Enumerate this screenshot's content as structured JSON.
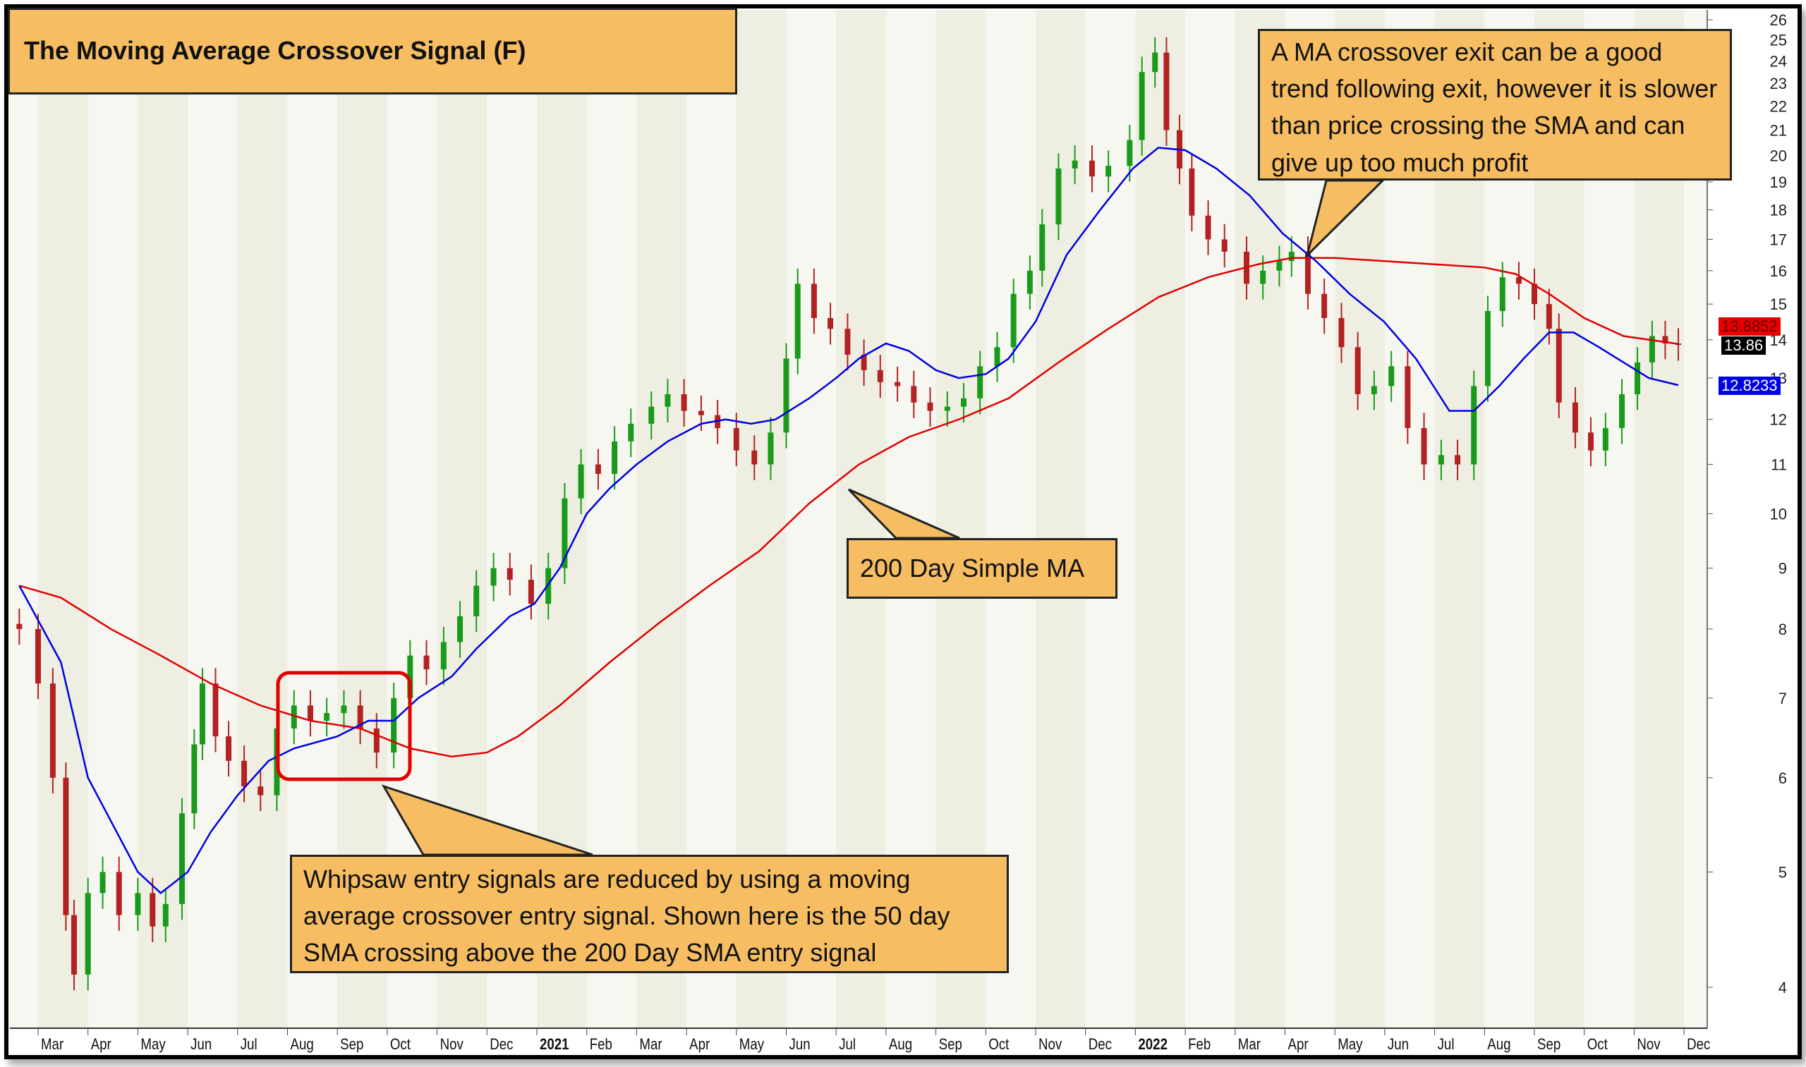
{
  "chart_data": {
    "type": "candlestick",
    "title": "The Moving Average Crossover Signal (F)",
    "xlabel": "",
    "ylabel": "",
    "y_scale": "log",
    "ylim": [
      3.8,
      26.5
    ],
    "y_ticks": [
      4,
      5,
      6,
      7,
      8,
      9,
      10,
      11,
      12,
      13,
      14,
      15,
      16,
      17,
      18,
      19,
      20,
      21,
      22,
      23,
      24,
      25,
      26
    ],
    "x_ticks": [
      "Mar",
      "Apr",
      "May",
      "Jun",
      "Jul",
      "Aug",
      "Sep",
      "Oct",
      "Nov",
      "Dec",
      "2021",
      "Feb",
      "Mar",
      "Apr",
      "May",
      "Jun",
      "Jul",
      "Aug",
      "Sep",
      "Oct",
      "Nov",
      "Dec",
      "2022",
      "Feb",
      "Mar",
      "Apr",
      "May",
      "Jun",
      "Jul",
      "Aug",
      "Sep",
      "Oct",
      "Nov",
      "Dec"
    ],
    "grid": "alternating month bands",
    "colors": {
      "up": "#1a9a1a",
      "down": "#b22222",
      "sma50": "#0000e0",
      "sma200": "#e00000",
      "band": "#eeefe2"
    },
    "price": [
      [
        "2020-02-20",
        8.0
      ],
      [
        "2020-03-01",
        7.2
      ],
      [
        "2020-03-10",
        6.0
      ],
      [
        "2020-03-18",
        4.6
      ],
      [
        "2020-03-23",
        4.1
      ],
      [
        "2020-04-01",
        4.8
      ],
      [
        "2020-04-10",
        5.0
      ],
      [
        "2020-04-20",
        4.6
      ],
      [
        "2020-05-01",
        4.8
      ],
      [
        "2020-05-10",
        4.5
      ],
      [
        "2020-05-18",
        4.7
      ],
      [
        "2020-05-28",
        5.6
      ],
      [
        "2020-06-05",
        6.4
      ],
      [
        "2020-06-10",
        7.2
      ],
      [
        "2020-06-18",
        6.5
      ],
      [
        "2020-06-26",
        6.2
      ],
      [
        "2020-07-05",
        5.9
      ],
      [
        "2020-07-15",
        5.8
      ],
      [
        "2020-07-25",
        6.6
      ],
      [
        "2020-08-05",
        6.9
      ],
      [
        "2020-08-15",
        6.7
      ],
      [
        "2020-08-25",
        6.8
      ],
      [
        "2020-09-05",
        6.9
      ],
      [
        "2020-09-15",
        6.6
      ],
      [
        "2020-09-25",
        6.3
      ],
      [
        "2020-10-05",
        7.0
      ],
      [
        "2020-10-15",
        7.6
      ],
      [
        "2020-10-25",
        7.4
      ],
      [
        "2020-11-05",
        7.8
      ],
      [
        "2020-11-15",
        8.2
      ],
      [
        "2020-11-25",
        8.7
      ],
      [
        "2020-12-05",
        9.0
      ],
      [
        "2020-12-15",
        8.8
      ],
      [
        "2020-12-28",
        8.4
      ],
      [
        "2021-01-08",
        9.0
      ],
      [
        "2021-01-18",
        10.3
      ],
      [
        "2021-01-28",
        11.0
      ],
      [
        "2021-02-08",
        10.8
      ],
      [
        "2021-02-18",
        11.5
      ],
      [
        "2021-02-28",
        11.9
      ],
      [
        "2021-03-10",
        12.3
      ],
      [
        "2021-03-20",
        12.6
      ],
      [
        "2021-03-30",
        12.2
      ],
      [
        "2021-04-10",
        12.1
      ],
      [
        "2021-04-20",
        11.8
      ],
      [
        "2021-05-01",
        11.3
      ],
      [
        "2021-05-12",
        11.0
      ],
      [
        "2021-05-22",
        11.7
      ],
      [
        "2021-06-01",
        13.5
      ],
      [
        "2021-06-08",
        15.6
      ],
      [
        "2021-06-18",
        14.6
      ],
      [
        "2021-06-28",
        14.3
      ],
      [
        "2021-07-08",
        13.6
      ],
      [
        "2021-07-18",
        13.2
      ],
      [
        "2021-07-28",
        12.9
      ],
      [
        "2021-08-08",
        12.8
      ],
      [
        "2021-08-18",
        12.4
      ],
      [
        "2021-08-28",
        12.2
      ],
      [
        "2021-09-08",
        12.3
      ],
      [
        "2021-09-18",
        12.5
      ],
      [
        "2021-09-28",
        13.3
      ],
      [
        "2021-10-08",
        13.8
      ],
      [
        "2021-10-18",
        15.3
      ],
      [
        "2021-10-28",
        16.0
      ],
      [
        "2021-11-05",
        17.5
      ],
      [
        "2021-11-15",
        19.5
      ],
      [
        "2021-11-25",
        19.8
      ],
      [
        "2021-12-05",
        19.2
      ],
      [
        "2021-12-15",
        19.6
      ],
      [
        "2021-12-28",
        20.6
      ],
      [
        "2022-01-05",
        23.5
      ],
      [
        "2022-01-13",
        24.4
      ],
      [
        "2022-01-20",
        21.0
      ],
      [
        "2022-01-28",
        19.5
      ],
      [
        "2022-02-05",
        17.8
      ],
      [
        "2022-02-15",
        17.0
      ],
      [
        "2022-02-25",
        16.6
      ],
      [
        "2022-03-08",
        15.6
      ],
      [
        "2022-03-18",
        16.0
      ],
      [
        "2022-03-28",
        16.3
      ],
      [
        "2022-04-05",
        16.6
      ],
      [
        "2022-04-15",
        15.3
      ],
      [
        "2022-04-25",
        14.6
      ],
      [
        "2022-05-05",
        13.8
      ],
      [
        "2022-05-15",
        12.6
      ],
      [
        "2022-05-25",
        12.8
      ],
      [
        "2022-06-05",
        13.3
      ],
      [
        "2022-06-15",
        11.8
      ],
      [
        "2022-06-25",
        11.0
      ],
      [
        "2022-07-05",
        11.2
      ],
      [
        "2022-07-15",
        11.0
      ],
      [
        "2022-07-25",
        12.8
      ],
      [
        "2022-08-03",
        14.8
      ],
      [
        "2022-08-12",
        15.8
      ],
      [
        "2022-08-22",
        15.6
      ],
      [
        "2022-09-01",
        15.0
      ],
      [
        "2022-09-10",
        14.3
      ],
      [
        "2022-09-16",
        12.4
      ],
      [
        "2022-09-26",
        11.7
      ],
      [
        "2022-10-05",
        11.3
      ],
      [
        "2022-10-14",
        11.8
      ],
      [
        "2022-10-24",
        12.6
      ],
      [
        "2022-11-03",
        13.4
      ],
      [
        "2022-11-12",
        14.1
      ],
      [
        "2022-11-20",
        13.9
      ],
      [
        "2022-11-28",
        13.86
      ]
    ],
    "sma50": [
      [
        "2020-02-20",
        8.7
      ],
      [
        "2020-03-15",
        7.5
      ],
      [
        "2020-04-01",
        6.0
      ],
      [
        "2020-05-01",
        5.0
      ],
      [
        "2020-05-15",
        4.8
      ],
      [
        "2020-06-01",
        5.0
      ],
      [
        "2020-06-15",
        5.4
      ],
      [
        "2020-07-01",
        5.8
      ],
      [
        "2020-07-20",
        6.2
      ],
      [
        "2020-08-05",
        6.35
      ],
      [
        "2020-09-01",
        6.5
      ],
      [
        "2020-09-20",
        6.7
      ],
      [
        "2020-10-05",
        6.7
      ],
      [
        "2020-10-20",
        7.0
      ],
      [
        "2020-11-10",
        7.3
      ],
      [
        "2020-11-25",
        7.7
      ],
      [
        "2020-12-15",
        8.2
      ],
      [
        "2020-12-30",
        8.4
      ],
      [
        "2021-01-15",
        9.0
      ],
      [
        "2021-02-01",
        10.0
      ],
      [
        "2021-02-15",
        10.5
      ],
      [
        "2021-03-01",
        11.0
      ],
      [
        "2021-03-20",
        11.5
      ],
      [
        "2021-04-10",
        11.9
      ],
      [
        "2021-04-25",
        12.0
      ],
      [
        "2021-05-10",
        11.9
      ],
      [
        "2021-05-25",
        12.0
      ],
      [
        "2021-06-15",
        12.5
      ],
      [
        "2021-07-01",
        13.0
      ],
      [
        "2021-07-15",
        13.5
      ],
      [
        "2021-08-01",
        13.9
      ],
      [
        "2021-08-15",
        13.7
      ],
      [
        "2021-09-01",
        13.2
      ],
      [
        "2021-09-15",
        13.0
      ],
      [
        "2021-10-01",
        13.1
      ],
      [
        "2021-10-15",
        13.5
      ],
      [
        "2021-11-01",
        14.5
      ],
      [
        "2021-11-20",
        16.5
      ],
      [
        "2021-12-10",
        18.0
      ],
      [
        "2021-12-30",
        19.5
      ],
      [
        "2022-01-15",
        20.3
      ],
      [
        "2022-02-01",
        20.2
      ],
      [
        "2022-02-20",
        19.5
      ],
      [
        "2022-03-10",
        18.5
      ],
      [
        "2022-03-30",
        17.2
      ],
      [
        "2022-04-20",
        16.3
      ],
      [
        "2022-05-10",
        15.3
      ],
      [
        "2022-05-31",
        14.5
      ],
      [
        "2022-06-20",
        13.5
      ],
      [
        "2022-07-10",
        12.2
      ],
      [
        "2022-07-25",
        12.2
      ],
      [
        "2022-08-10",
        12.8
      ],
      [
        "2022-08-25",
        13.5
      ],
      [
        "2022-09-10",
        14.2
      ],
      [
        "2022-09-25",
        14.2
      ],
      [
        "2022-10-10",
        13.8
      ],
      [
        "2022-10-25",
        13.4
      ],
      [
        "2022-11-10",
        13.0
      ],
      [
        "2022-11-28",
        12.8233
      ]
    ],
    "sma200": [
      [
        "2020-02-20",
        8.7
      ],
      [
        "2020-03-15",
        8.5
      ],
      [
        "2020-04-15",
        8.0
      ],
      [
        "2020-05-15",
        7.6
      ],
      [
        "2020-06-15",
        7.2
      ],
      [
        "2020-07-15",
        6.9
      ],
      [
        "2020-08-15",
        6.7
      ],
      [
        "2020-09-15",
        6.6
      ],
      [
        "2020-10-15",
        6.35
      ],
      [
        "2020-11-10",
        6.25
      ],
      [
        "2020-12-01",
        6.3
      ],
      [
        "2020-12-20",
        6.5
      ],
      [
        "2021-01-15",
        6.9
      ],
      [
        "2021-02-15",
        7.5
      ],
      [
        "2021-03-15",
        8.1
      ],
      [
        "2021-04-15",
        8.7
      ],
      [
        "2021-05-15",
        9.3
      ],
      [
        "2021-06-15",
        10.2
      ],
      [
        "2021-07-15",
        11.0
      ],
      [
        "2021-08-15",
        11.6
      ],
      [
        "2021-09-15",
        12.0
      ],
      [
        "2021-10-15",
        12.5
      ],
      [
        "2021-11-15",
        13.4
      ],
      [
        "2021-12-15",
        14.3
      ],
      [
        "2022-01-15",
        15.2
      ],
      [
        "2022-02-15",
        15.8
      ],
      [
        "2022-03-15",
        16.2
      ],
      [
        "2022-04-05",
        16.4
      ],
      [
        "2022-05-01",
        16.4
      ],
      [
        "2022-06-01",
        16.3
      ],
      [
        "2022-07-01",
        16.2
      ],
      [
        "2022-08-01",
        16.1
      ],
      [
        "2022-08-20",
        15.9
      ],
      [
        "2022-09-10",
        15.3
      ],
      [
        "2022-10-01",
        14.6
      ],
      [
        "2022-10-25",
        14.1
      ],
      [
        "2022-11-28",
        13.8852
      ]
    ],
    "last_values": {
      "sma200": "13.8852",
      "close": "13.86",
      "sma50": "12.8233"
    },
    "annotations": {
      "exit": "A MA crossover exit can be a good trend following exit, however it is slower than price crossing the SMA and can give up too much profit",
      "sma200_label": "200 Day Simple MA",
      "whipsaw": "Whipsaw entry signals are reduced by using a moving average crossover entry signal. Shown here is the 50 day SMA crossing above the 200 Day SMA entry signal"
    }
  }
}
